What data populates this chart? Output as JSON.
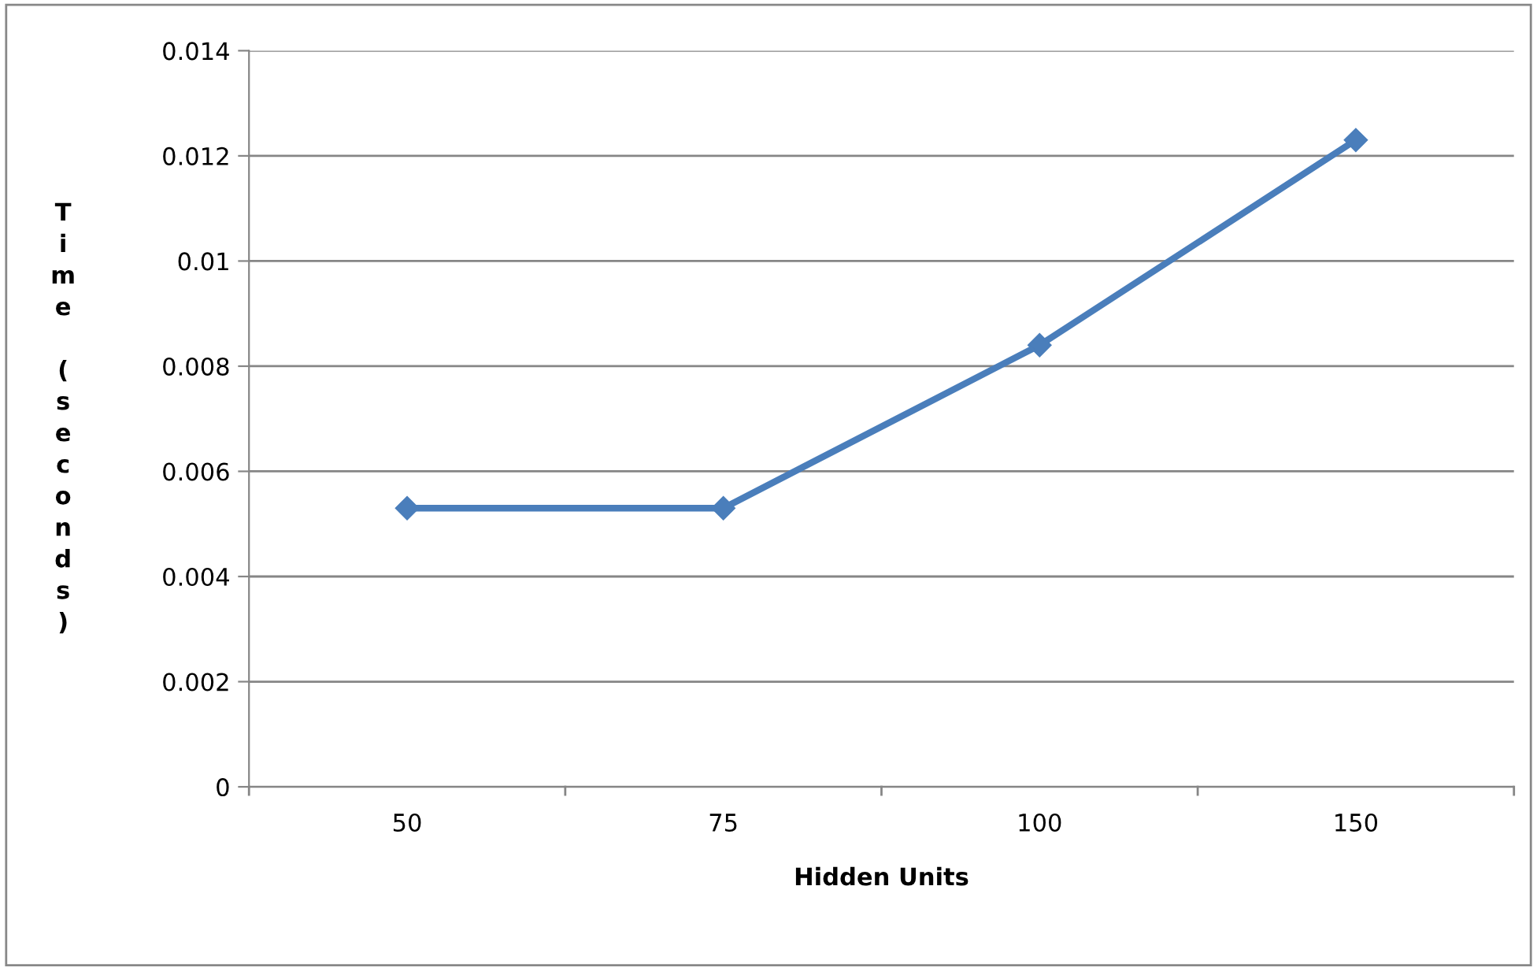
{
  "chart_data": {
    "type": "line",
    "xlabel": "Hidden Units",
    "ylabel": "Time (seconds)",
    "categories": [
      "50",
      "75",
      "100",
      "150"
    ],
    "series": [
      {
        "color": "#4a7ebb",
        "values": [
          0.0053,
          0.0053,
          0.0084,
          0.0123
        ]
      }
    ],
    "ylim": [
      0,
      0.014
    ],
    "yticks": [
      0,
      0.002,
      0.004,
      0.006,
      0.008,
      0.01,
      0.012,
      0.014
    ],
    "grid": "y",
    "marker": "diamond",
    "line_style": "solid"
  }
}
